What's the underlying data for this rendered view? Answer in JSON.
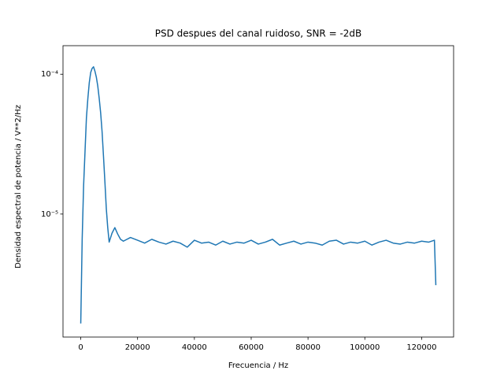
{
  "chart_data": {
    "type": "line",
    "title": "PSD despues del canal ruidoso, SNR = -2dB",
    "x_label": "Frecuencia / Hz",
    "y_label": "Densidad espectral de potencia / V**2/Hz",
    "yscale": "log",
    "grid": false,
    "xlim": [
      -6250,
      131250
    ],
    "ylim": [
      1.32e-06,
      0.00016
    ],
    "xticks": [
      0,
      20000,
      40000,
      60000,
      80000,
      100000,
      120000
    ],
    "yticks": [
      {
        "value": 1e-05,
        "label": "10⁻⁵"
      },
      {
        "value": 0.0001,
        "label": "10⁻⁴"
      }
    ],
    "series": [
      {
        "color": "#1f77b4",
        "x": [
          0,
          500,
          1000,
          1500,
          2000,
          2500,
          3000,
          3500,
          4000,
          4500,
          5000,
          5500,
          6000,
          6500,
          7000,
          7500,
          8000,
          8500,
          9000,
          9500,
          10000,
          11000,
          12000,
          13000,
          14000,
          15000,
          17500,
          20000,
          22500,
          25000,
          27500,
          30000,
          32500,
          35000,
          37500,
          40000,
          42500,
          45000,
          47500,
          50000,
          52500,
          55000,
          57500,
          60000,
          62500,
          65000,
          67500,
          70000,
          72500,
          75000,
          77500,
          80000,
          82500,
          85000,
          87500,
          90000,
          92500,
          95000,
          97500,
          100000,
          102500,
          105000,
          107500,
          110000,
          112500,
          115000,
          117500,
          120000,
          122500,
          124500,
          125000
        ],
        "values": [
          1.65e-06,
          6.6e-06,
          1.59e-05,
          2.8e-05,
          4.9e-05,
          6.7e-05,
          8.7e-05,
          0.000103,
          0.00011,
          0.000113,
          0.000105,
          9.5e-05,
          8.2e-05,
          6.7e-05,
          5.3e-05,
          3.9e-05,
          2.6e-05,
          1.7e-05,
          1.09e-05,
          8e-06,
          6.3e-06,
          7.3e-06,
          8e-06,
          7.2e-06,
          6.6e-06,
          6.4e-06,
          6.8e-06,
          6.5e-06,
          6.2e-06,
          6.6e-06,
          6.3e-06,
          6.1e-06,
          6.4e-06,
          6.2e-06,
          5.8e-06,
          6.5e-06,
          6.2e-06,
          6.3e-06,
          6e-06,
          6.4e-06,
          6.1e-06,
          6.3e-06,
          6.2e-06,
          6.5e-06,
          6.1e-06,
          6.3e-06,
          6.6e-06,
          6e-06,
          6.2e-06,
          6.4e-06,
          6.1e-06,
          6.3e-06,
          6.2e-06,
          6e-06,
          6.4e-06,
          6.5e-06,
          6.1e-06,
          6.3e-06,
          6.2e-06,
          6.4e-06,
          6e-06,
          6.3e-06,
          6.5e-06,
          6.2e-06,
          6.1e-06,
          6.3e-06,
          6.2e-06,
          6.4e-06,
          6.3e-06,
          6.5e-06,
          3.1e-06
        ]
      }
    ]
  }
}
